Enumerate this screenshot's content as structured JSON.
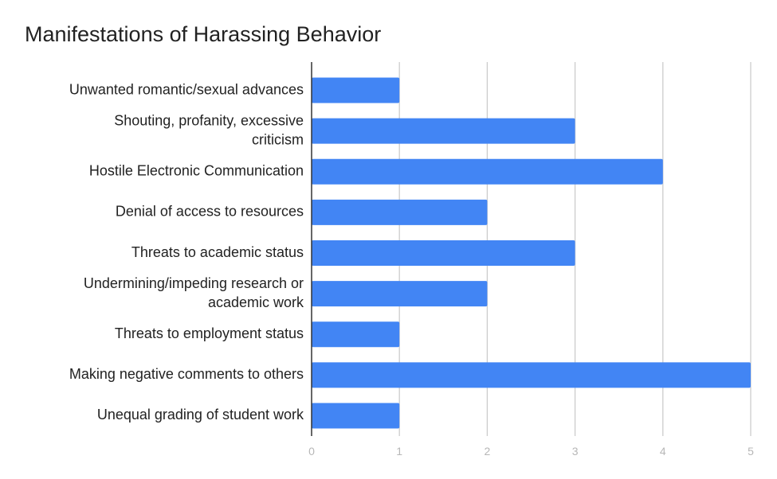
{
  "chart_data": {
    "type": "bar",
    "orientation": "horizontal",
    "title": "Manifestations of Harassing Behavior",
    "xlabel": "",
    "ylabel": "",
    "categories": [
      "Unwanted romantic/sexual advances",
      "Shouting, profanity, excessive criticism",
      "Hostile Electronic Communication",
      "Denial of access to resources",
      "Threats to academic status",
      "Undermining/impeding research or academic work",
      "Threats to employment status",
      "Making negative comments to others",
      "Unequal grading of student work"
    ],
    "values": [
      1,
      3,
      4,
      2,
      3,
      2,
      1,
      5,
      1
    ],
    "xlim": [
      0,
      5
    ],
    "x_ticks": [
      "0",
      "1",
      "2",
      "3",
      "4",
      "5"
    ],
    "grid": true,
    "legend": "none",
    "bar_color": "#4285f4",
    "grid_color": "#cccccc",
    "axis_color": "#333333"
  }
}
